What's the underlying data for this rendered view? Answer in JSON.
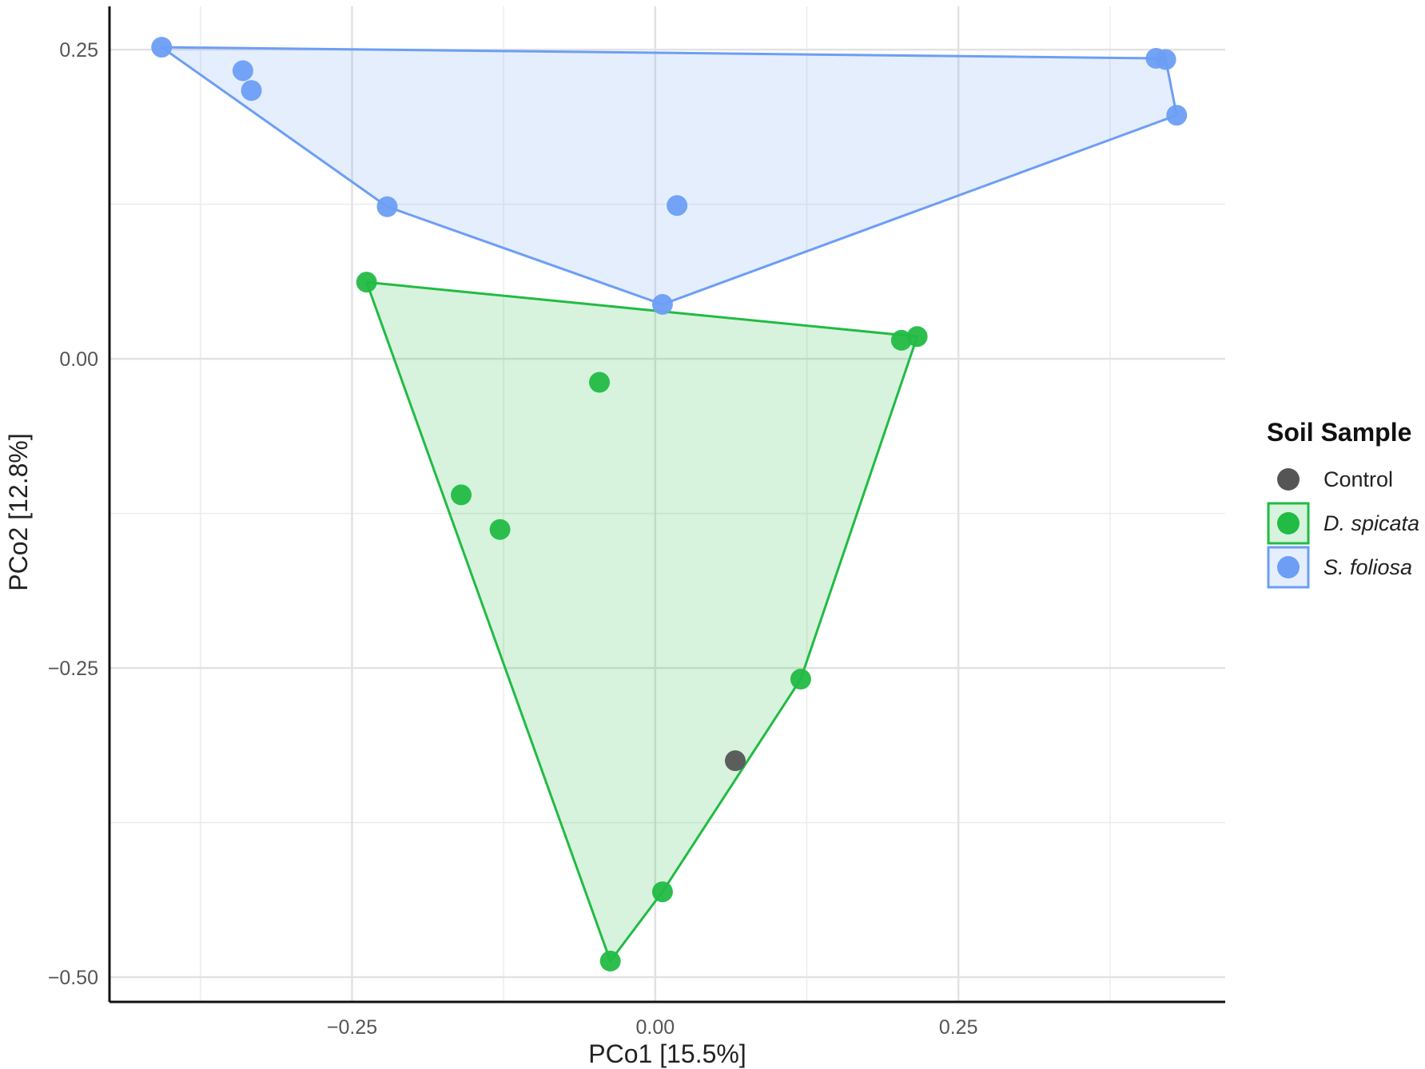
{
  "chart_data": {
    "type": "scatter",
    "title": "",
    "xlabel": "PCo1 [15.5%]",
    "ylabel": "PCo2 [12.8%]",
    "xlim": [
      -0.45,
      0.47
    ],
    "ylim": [
      -0.52,
      0.285
    ],
    "x_ticks": [
      -0.25,
      0.0,
      0.25
    ],
    "x_tick_labels": [
      "−0.25",
      "0.00",
      "0.25"
    ],
    "y_ticks": [
      0.25,
      0.0,
      -0.25,
      -0.5
    ],
    "y_tick_labels": [
      "0.25",
      "0.00",
      "−0.25",
      "−0.50"
    ],
    "grid": true,
    "legend": {
      "title": "Soil Sample",
      "placement": "right",
      "entries": [
        "Control",
        "D. spicata",
        "S. foliosa"
      ]
    },
    "series": [
      {
        "name": "Control",
        "color": "#555555",
        "hull": false,
        "points": [
          {
            "x": 0.066,
            "y": -0.325
          }
        ]
      },
      {
        "name": "D. spicata",
        "color": "#22bb44",
        "hull": true,
        "points": [
          {
            "x": -0.238,
            "y": 0.062
          },
          {
            "x": 0.203,
            "y": 0.015
          },
          {
            "x": 0.216,
            "y": 0.018
          },
          {
            "x": -0.046,
            "y": -0.019
          },
          {
            "x": -0.16,
            "y": -0.11
          },
          {
            "x": -0.128,
            "y": -0.138
          },
          {
            "x": 0.12,
            "y": -0.259
          },
          {
            "x": 0.006,
            "y": -0.431
          },
          {
            "x": -0.037,
            "y": -0.487
          }
        ]
      },
      {
        "name": "S. foliosa",
        "color": "#6d9ef5",
        "hull": true,
        "points": [
          {
            "x": -0.407,
            "y": 0.252
          },
          {
            "x": -0.34,
            "y": 0.233
          },
          {
            "x": -0.333,
            "y": 0.217
          },
          {
            "x": -0.221,
            "y": 0.123
          },
          {
            "x": 0.018,
            "y": 0.124
          },
          {
            "x": 0.006,
            "y": 0.044
          },
          {
            "x": 0.413,
            "y": 0.243
          },
          {
            "x": 0.421,
            "y": 0.242
          },
          {
            "x": 0.43,
            "y": 0.197
          }
        ]
      }
    ]
  }
}
